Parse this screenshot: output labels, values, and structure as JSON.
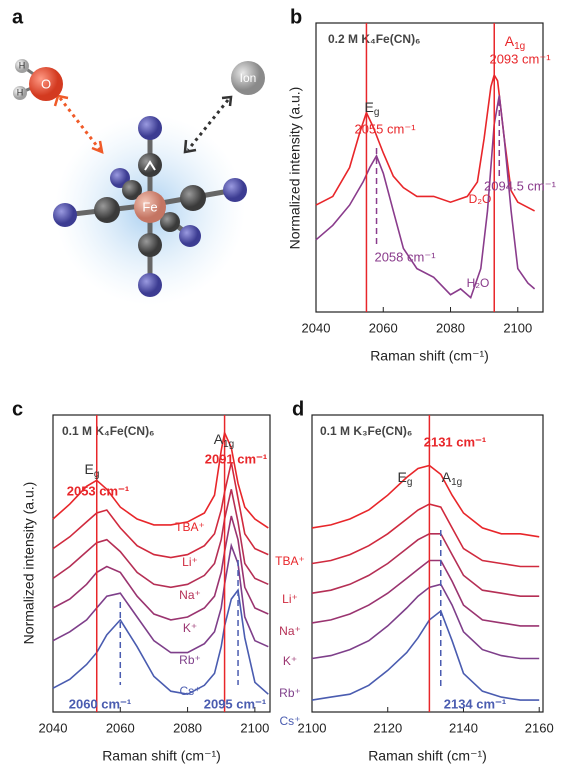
{
  "panel_a": {
    "label": "a",
    "o": "O",
    "h1": "H",
    "h2": "H",
    "fe": "Fe",
    "ion": "Ion"
  },
  "chart_data": [
    {
      "type": "line",
      "panel_label": "b",
      "title": "0.2 M K₄Fe(CN)₆",
      "x_label": "Raman shift (cm⁻¹)",
      "y_label": "Normalized intensity (a.u.)",
      "xlim": [
        2040,
        2107.5
      ],
      "xticks": [
        2040,
        2060,
        2080,
        2100
      ],
      "ylim": [
        0,
        1
      ],
      "series": [
        {
          "name": "D₂O",
          "color": "#e8262a",
          "x": [
            2040,
            2045,
            2050,
            2053,
            2055,
            2057,
            2060,
            2063,
            2066,
            2070,
            2075,
            2080,
            2085,
            2088,
            2090,
            2092,
            2093,
            2094,
            2096,
            2098,
            2100,
            2105
          ],
          "values": [
            0.37,
            0.4,
            0.5,
            0.62,
            0.69,
            0.64,
            0.55,
            0.47,
            0.43,
            0.4,
            0.4,
            0.38,
            0.4,
            0.45,
            0.6,
            0.78,
            0.82,
            0.8,
            0.6,
            0.42,
            0.38,
            0.35
          ]
        },
        {
          "name": "H₂O",
          "color": "#8a3c8c",
          "x": [
            2040,
            2045,
            2050,
            2054,
            2056,
            2058,
            2060,
            2063,
            2066,
            2070,
            2075,
            2080,
            2083,
            2086,
            2089,
            2091,
            2093,
            2094.5,
            2096,
            2098,
            2100,
            2103,
            2105
          ],
          "values": [
            0.25,
            0.3,
            0.37,
            0.45,
            0.5,
            0.54,
            0.48,
            0.35,
            0.22,
            0.15,
            0.12,
            0.06,
            0.08,
            0.05,
            0.15,
            0.35,
            0.65,
            0.75,
            0.6,
            0.35,
            0.15,
            0.1,
            0.08
          ]
        }
      ],
      "markers": [
        {
          "x": 2055,
          "label": "2055 cm⁻¹",
          "color": "#e8262a",
          "style": "solid"
        },
        {
          "x": 2093,
          "label": "2093 cm⁻¹",
          "color": "#e8262a",
          "style": "solid"
        },
        {
          "x": 2058,
          "label": "2058 cm⁻¹",
          "color": "#8a3c8c",
          "style": "dashed"
        },
        {
          "x": 2094.5,
          "label": "2094.5 cm⁻¹",
          "color": "#8a3c8c",
          "style": "dashed"
        }
      ],
      "peak_labels": [
        {
          "text": "E",
          "sub": "g"
        },
        {
          "text": "A",
          "sub": "1g"
        }
      ]
    },
    {
      "type": "line",
      "panel_label": "c",
      "title": "0.1 M K₄Fe(CN)₆",
      "x_label": "Raman shift (cm⁻¹)",
      "y_label": "Normalized intensity (a.u.)",
      "xlim": [
        2040,
        2104.5
      ],
      "xticks": [
        2040,
        2060,
        2080,
        2100
      ],
      "ylim": [
        0,
        1
      ],
      "series": [
        {
          "name": "TBA⁺",
          "color": "#e8262a",
          "x": [
            2040,
            2045,
            2050,
            2053,
            2056,
            2060,
            2065,
            2070,
            2075,
            2080,
            2085,
            2088,
            2090,
            2091,
            2093,
            2095,
            2097,
            2100,
            2104
          ],
          "values": [
            0.65,
            0.7,
            0.76,
            0.78,
            0.75,
            0.69,
            0.65,
            0.63,
            0.63,
            0.64,
            0.67,
            0.73,
            0.88,
            0.94,
            0.89,
            0.77,
            0.69,
            0.65,
            0.62
          ]
        },
        {
          "name": "Li⁺",
          "color": "#d02a3e",
          "x": [
            2040,
            2045,
            2050,
            2053,
            2056,
            2060,
            2065,
            2070,
            2075,
            2080,
            2085,
            2088,
            2090,
            2091,
            2093,
            2095,
            2097,
            2100,
            2104
          ],
          "values": [
            0.55,
            0.59,
            0.64,
            0.67,
            0.68,
            0.62,
            0.56,
            0.53,
            0.52,
            0.53,
            0.56,
            0.6,
            0.68,
            0.74,
            0.84,
            0.72,
            0.6,
            0.55,
            0.53
          ]
        },
        {
          "name": "Na⁺",
          "color": "#b52f55",
          "x": [
            2040,
            2045,
            2050,
            2053,
            2056,
            2060,
            2065,
            2070,
            2075,
            2080,
            2085,
            2088,
            2090,
            2091,
            2093,
            2095,
            2097,
            2100,
            2104
          ],
          "values": [
            0.45,
            0.49,
            0.54,
            0.57,
            0.58,
            0.54,
            0.47,
            0.43,
            0.42,
            0.43,
            0.46,
            0.5,
            0.58,
            0.65,
            0.75,
            0.64,
            0.5,
            0.45,
            0.43
          ]
        },
        {
          "name": "K⁺",
          "color": "#9a3470",
          "x": [
            2040,
            2045,
            2050,
            2053,
            2056,
            2060,
            2065,
            2070,
            2075,
            2080,
            2085,
            2088,
            2090,
            2091,
            2093,
            2095,
            2097,
            2100,
            2104
          ],
          "values": [
            0.35,
            0.38,
            0.43,
            0.47,
            0.49,
            0.47,
            0.39,
            0.33,
            0.31,
            0.32,
            0.35,
            0.39,
            0.47,
            0.54,
            0.66,
            0.58,
            0.42,
            0.35,
            0.33
          ]
        },
        {
          "name": "Rb⁺",
          "color": "#7e3f8a",
          "x": [
            2040,
            2045,
            2050,
            2053,
            2056,
            2060,
            2065,
            2070,
            2075,
            2080,
            2085,
            2088,
            2090,
            2091,
            2093,
            2095,
            2097,
            2100,
            2104
          ],
          "values": [
            0.24,
            0.27,
            0.31,
            0.35,
            0.39,
            0.4,
            0.32,
            0.24,
            0.2,
            0.2,
            0.23,
            0.27,
            0.35,
            0.43,
            0.56,
            0.5,
            0.32,
            0.24,
            0.22
          ]
        },
        {
          "name": "Cs⁺",
          "color": "#4a5cb0",
          "x": [
            2040,
            2045,
            2050,
            2053,
            2056,
            2060,
            2065,
            2070,
            2075,
            2080,
            2085,
            2088,
            2090,
            2091,
            2093,
            2095,
            2097,
            2100,
            2104
          ],
          "values": [
            0.08,
            0.11,
            0.16,
            0.2,
            0.26,
            0.31,
            0.22,
            0.12,
            0.07,
            0.06,
            0.09,
            0.13,
            0.22,
            0.29,
            0.38,
            0.41,
            0.25,
            0.1,
            0.06
          ]
        }
      ],
      "markers": [
        {
          "x": 2053,
          "label": "2053 cm⁻¹",
          "color": "#e8262a",
          "style": "solid"
        },
        {
          "x": 2091,
          "label": "2091 cm⁻¹",
          "color": "#e8262a",
          "style": "solid"
        },
        {
          "x": 2060,
          "label": "2060 cm⁻¹",
          "color": "#4a5cb0",
          "style": "dashed"
        },
        {
          "x": 2095,
          "label": "2095 cm⁻¹",
          "color": "#4a5cb0",
          "style": "dashed"
        }
      ],
      "peak_labels": [
        {
          "text": "E",
          "sub": "g"
        },
        {
          "text": "A",
          "sub": "1g"
        }
      ]
    },
    {
      "type": "line",
      "panel_label": "d",
      "title": "0.1 M K₃Fe(CN)₆",
      "x_label": "Raman shift (cm⁻¹)",
      "xlim": [
        2100,
        2161
      ],
      "xticks": [
        2100,
        2120,
        2140,
        2160
      ],
      "ylim": [
        0,
        1
      ],
      "series": [
        {
          "name": "TBA⁺",
          "color": "#e8262a",
          "x": [
            2100,
            2105,
            2110,
            2115,
            2120,
            2125,
            2128,
            2131,
            2134,
            2137,
            2140,
            2145,
            2150,
            2155,
            2160
          ],
          "values": [
            0.62,
            0.63,
            0.65,
            0.68,
            0.73,
            0.79,
            0.82,
            0.83,
            0.8,
            0.73,
            0.67,
            0.62,
            0.6,
            0.6,
            0.59
          ]
        },
        {
          "name": "Li⁺",
          "color": "#d02a3e",
          "x": [
            2100,
            2105,
            2110,
            2115,
            2120,
            2125,
            2128,
            2131,
            2134,
            2137,
            2140,
            2145,
            2150,
            2155,
            2160
          ],
          "values": [
            0.5,
            0.51,
            0.53,
            0.56,
            0.6,
            0.65,
            0.68,
            0.7,
            0.69,
            0.62,
            0.55,
            0.51,
            0.5,
            0.49,
            0.49
          ]
        },
        {
          "name": "Na⁺",
          "color": "#b52f55",
          "x": [
            2100,
            2105,
            2110,
            2115,
            2120,
            2125,
            2128,
            2131,
            2134,
            2137,
            2140,
            2145,
            2150,
            2155,
            2160
          ],
          "values": [
            0.4,
            0.41,
            0.43,
            0.46,
            0.5,
            0.55,
            0.58,
            0.6,
            0.6,
            0.53,
            0.46,
            0.41,
            0.4,
            0.39,
            0.39
          ]
        },
        {
          "name": "K⁺",
          "color": "#9a3470",
          "x": [
            2100,
            2105,
            2110,
            2115,
            2120,
            2125,
            2128,
            2131,
            2134,
            2137,
            2140,
            2145,
            2150,
            2155,
            2160
          ],
          "values": [
            0.3,
            0.31,
            0.33,
            0.36,
            0.4,
            0.45,
            0.48,
            0.51,
            0.51,
            0.44,
            0.36,
            0.31,
            0.3,
            0.29,
            0.29
          ]
        },
        {
          "name": "Rb⁺",
          "color": "#7e3f8a",
          "x": [
            2100,
            2105,
            2110,
            2115,
            2120,
            2125,
            2128,
            2131,
            2134,
            2137,
            2140,
            2145,
            2150,
            2155,
            2160
          ],
          "values": [
            0.18,
            0.19,
            0.21,
            0.24,
            0.29,
            0.35,
            0.39,
            0.42,
            0.43,
            0.36,
            0.27,
            0.21,
            0.19,
            0.18,
            0.18
          ]
        },
        {
          "name": "Cs⁺",
          "color": "#4a5cb0",
          "x": [
            2100,
            2105,
            2110,
            2115,
            2120,
            2125,
            2128,
            2131,
            2134,
            2137,
            2140,
            2145,
            2150,
            2155,
            2160
          ],
          "values": [
            0.04,
            0.05,
            0.06,
            0.09,
            0.14,
            0.2,
            0.25,
            0.31,
            0.34,
            0.24,
            0.13,
            0.07,
            0.05,
            0.04,
            0.04
          ]
        }
      ],
      "markers": [
        {
          "x": 2131,
          "label": "2131 cm⁻¹",
          "color": "#e8262a",
          "style": "solid"
        },
        {
          "x": 2134,
          "label": "2134 cm⁻¹",
          "color": "#4a5cb0",
          "style": "dashed"
        }
      ],
      "peak_labels": [
        {
          "text": "E",
          "sub": "g"
        },
        {
          "text": "A",
          "sub": "1g"
        }
      ]
    }
  ]
}
